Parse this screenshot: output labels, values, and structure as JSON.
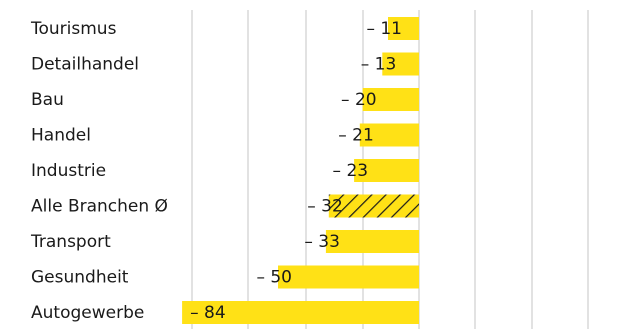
{
  "chart_data": {
    "type": "bar",
    "orientation": "horizontal",
    "categories": [
      "Tourismus",
      "Detailhandel",
      "Bau",
      "Handel",
      "Industrie",
      "Alle Branchen Ø",
      "Transport",
      "Gesundheit",
      "Autogewerbe"
    ],
    "values": [
      -11,
      -13,
      -20,
      -21,
      -23,
      -32,
      -33,
      -50,
      -84
    ],
    "value_labels": [
      "– 11",
      "– 13",
      "– 20",
      "– 21",
      "– 23",
      "– 32",
      "– 33",
      "– 50",
      "– 84"
    ],
    "hatched_category": "Alle Branchen Ø",
    "xlim": [
      -84,
      60
    ],
    "grid": true,
    "colors": {
      "bar": "#ffe116",
      "hatch": "#1a1a1a",
      "grid": "#c4c4c4",
      "text": "#1a1a1a"
    }
  }
}
